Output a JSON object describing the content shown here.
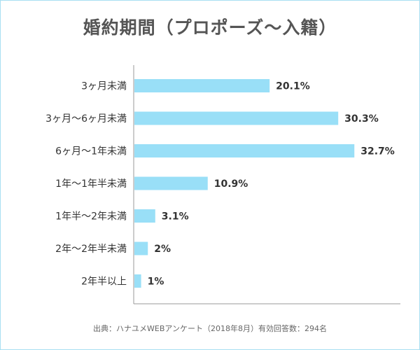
{
  "chart_data": {
    "type": "bar",
    "orientation": "horizontal",
    "title": "婚約期間（プロポーズ〜入籍）",
    "categories": [
      "3ヶ月未満",
      "3ヶ月〜6ヶ月未満",
      "6ヶ月〜1年未満",
      "1年〜1年半未満",
      "1年半〜2年未満",
      "2年〜2年半未満",
      "2年半以上"
    ],
    "values": [
      20.1,
      30.3,
      32.7,
      10.9,
      3.1,
      2,
      1
    ],
    "value_labels": [
      "20.1%",
      "30.3%",
      "32.7%",
      "10.9%",
      "3.1%",
      "2%",
      "1%"
    ],
    "unit": "%",
    "xlim": [
      0,
      40
    ],
    "grid": false,
    "bar_color": "#99dff7",
    "source": "出典：ハナユメWEBアンケート（2018年8月）有効回答数：294名"
  },
  "colors": {
    "border": "#a9dff2",
    "axis": "#999999",
    "title": "#555555"
  }
}
